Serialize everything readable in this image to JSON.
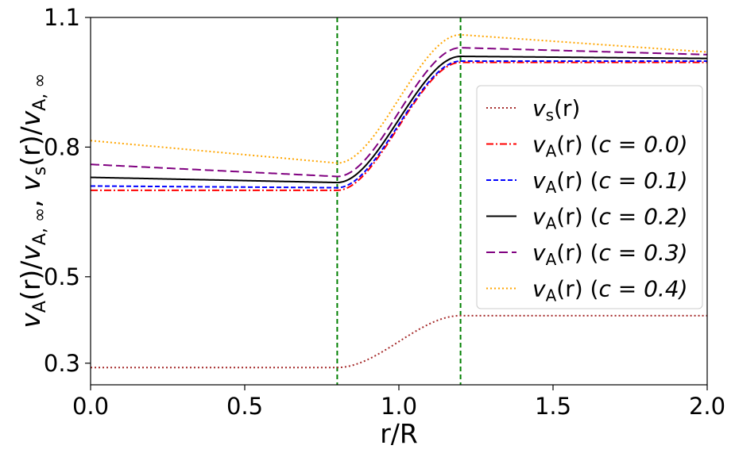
{
  "chart_data": {
    "type": "line",
    "title": "",
    "xlabel": "r/R",
    "ylabel": "vA(r)/vA,∞,  vs(r)/vA,∞",
    "xlim": [
      0.0,
      2.0
    ],
    "ylim": [
      0.25,
      1.1
    ],
    "xticks": [
      0.0,
      0.5,
      1.0,
      1.5,
      2.0
    ],
    "xtick_labels": [
      "0.0",
      "0.5",
      "1.0",
      "1.5",
      "2.0"
    ],
    "yticks": [
      0.3,
      0.5,
      0.8,
      1.1
    ],
    "ytick_labels": [
      "0.3",
      "0.5",
      "0.8",
      "1.1"
    ],
    "grid": false,
    "legend_position": "right",
    "vlines": [
      0.8,
      1.2
    ],
    "vline_color": "#008000",
    "series": [
      {
        "name": "v_s(r)",
        "color": "#a52a2a",
        "style": "dotted",
        "inner": 0.29,
        "outer": 0.41,
        "inner_slope": 0.0,
        "outer_slope": 0.0,
        "overshoot": 0.0
      },
      {
        "name": "v_A(r) (c = 0.0)",
        "color": "#ff0000",
        "style": "dashdot",
        "inner": 0.7,
        "outer": 0.996,
        "inner_slope": 0.0,
        "outer_slope": 0.0,
        "overshoot": 0.0
      },
      {
        "name": "v_A(r) (c = 0.1)",
        "color": "#0000ff",
        "style": "dashed",
        "inner": 0.71,
        "outer": 0.999,
        "inner_slope": -0.005,
        "outer_slope": 0.0,
        "overshoot": 0.0
      },
      {
        "name": "v_A(r) (c = 0.2)",
        "color": "#000000",
        "style": "solid",
        "inner": 0.73,
        "outer": 1.002,
        "inner_slope": -0.015,
        "outer_slope": -0.006,
        "overshoot": 0.008
      },
      {
        "name": "v_A(r) (c = 0.3)",
        "color": "#800080",
        "style": "longdash",
        "inner": 0.76,
        "outer": 1.005,
        "inner_slope": -0.035,
        "outer_slope": -0.02,
        "overshoot": 0.025
      },
      {
        "name": "v_A(r) (c = 0.4)",
        "color": "#ffa500",
        "style": "dotted",
        "inner": 0.815,
        "outer": 1.01,
        "inner_slope": -0.065,
        "outer_slope": -0.05,
        "overshoot": 0.05
      }
    ]
  },
  "legend": {
    "items": [
      {
        "prefix": "v",
        "sub": "s",
        "mid": "(r)",
        "tail": ""
      },
      {
        "prefix": "v",
        "sub": "A",
        "mid": "(r) (",
        "tail": "c = 0.0)"
      },
      {
        "prefix": "v",
        "sub": "A",
        "mid": "(r) (",
        "tail": "c = 0.1)"
      },
      {
        "prefix": "v",
        "sub": "A",
        "mid": "(r) (",
        "tail": "c = 0.2)"
      },
      {
        "prefix": "v",
        "sub": "A",
        "mid": "(r) (",
        "tail": "c = 0.3)"
      },
      {
        "prefix": "v",
        "sub": "A",
        "mid": "(r) (",
        "tail": "c = 0.4)"
      }
    ]
  },
  "ylabel_parts": {
    "v1": "v",
    "s1": "A",
    "m1": "(r)/",
    "v2": "v",
    "s2": "A, ∞",
    "comma": ",  ",
    "v3": "v",
    "s3": "s",
    "m3": "(r)/",
    "v4": "v",
    "s4": "A, ∞"
  }
}
